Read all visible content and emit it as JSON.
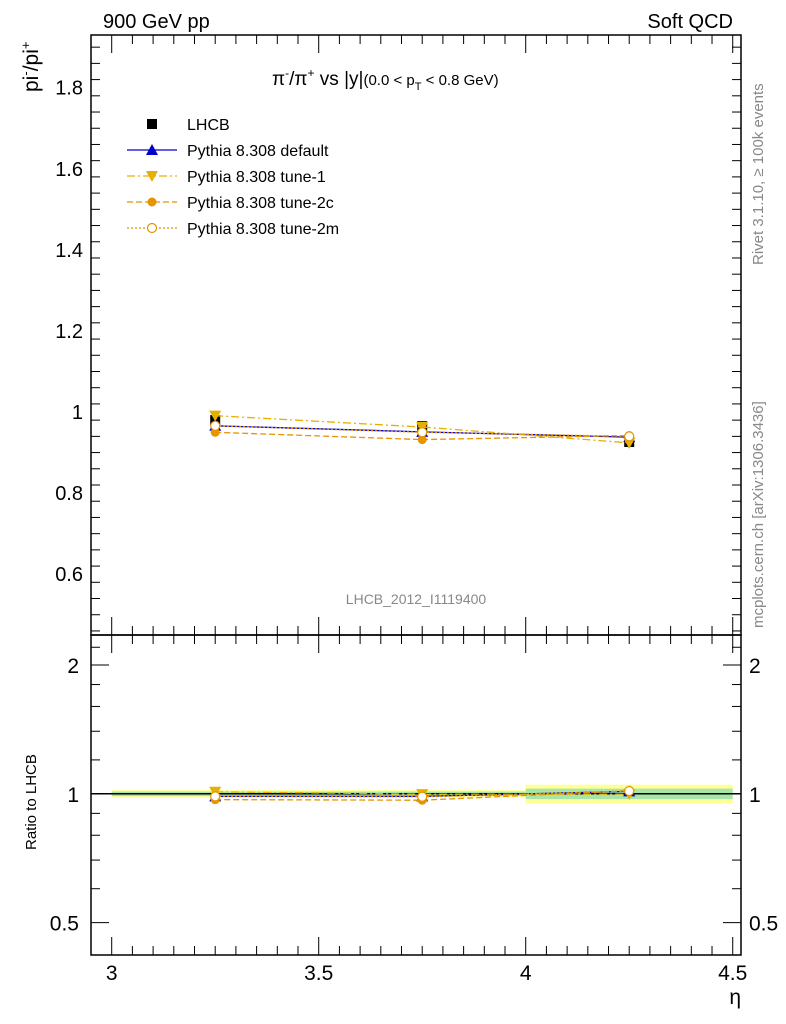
{
  "header": {
    "left_label": "900 GeV pp",
    "right_label": "Soft QCD"
  },
  "side_labels": {
    "rivet": "Rivet 3.1.10, ≥ 100k events",
    "mcplots": "mcplots.cern.ch [arXiv:1306.3436]"
  },
  "chart_data": [
    {
      "type": "line",
      "title": "π⁻/π⁺ vs |y|",
      "title_parts": {
        "main": "π",
        "sup1": "-",
        "slash": "/π",
        "sup2": "+",
        "rest": " vs |y|",
        "cut_pre": "(0.0 < p",
        "cut_sub": "T",
        "cut_post": " < 0.8 GeV)"
      },
      "ylabel": "pi-/pi+",
      "ylabel_parts": {
        "base": "pi",
        "sup1": "-",
        "mid": "/pi",
        "sup2": "+"
      },
      "analysis_label": "LHCB_2012_I1119400",
      "xlim": [
        2.95,
        4.52
      ],
      "ylim": [
        0.45,
        1.93
      ],
      "yticks": [
        0.6,
        0.8,
        1.0,
        1.2,
        1.4,
        1.6,
        1.8
      ],
      "ytick_labels": [
        "0.6",
        "0.8",
        "1",
        "1.2",
        "1.4",
        "1.6",
        "1.8"
      ],
      "legend_position": "top-left",
      "series": [
        {
          "name": "LHCB",
          "color": "#000000",
          "marker": "square",
          "line": "none",
          "x": [
            3.25,
            3.75,
            4.25
          ],
          "y": [
            0.98,
            0.965,
            0.926
          ],
          "yerr": [
            0.012,
            0.012,
            0.012
          ]
        },
        {
          "name": "Pythia 8.308 default",
          "color": "#0000cc",
          "marker": "triangle-up",
          "line": "solid",
          "x": [
            3.25,
            3.75,
            4.25
          ],
          "y": [
            0.966,
            0.951,
            0.938
          ]
        },
        {
          "name": "Pythia 8.308 tune-1",
          "color": "#e6b000",
          "marker": "triangle-down",
          "line": "dashdot",
          "x": [
            3.25,
            3.75,
            4.25
          ],
          "y": [
            0.991,
            0.963,
            0.924
          ]
        },
        {
          "name": "Pythia 8.308 tune-2c",
          "color": "#e69500",
          "marker": "circle",
          "line": "dashed",
          "x": [
            3.25,
            3.75,
            4.25
          ],
          "y": [
            0.95,
            0.932,
            0.942
          ]
        },
        {
          "name": "Pythia 8.308 tune-2m",
          "color": "#e69500",
          "marker": "open-circle",
          "line": "dotted",
          "x": [
            3.25,
            3.75,
            4.25
          ],
          "y": [
            0.966,
            0.95,
            0.94
          ]
        }
      ]
    },
    {
      "type": "line",
      "ylabel": "Ratio to LHCB",
      "xlabel": "η",
      "xlim": [
        2.95,
        4.52
      ],
      "ylim": [
        0.42,
        2.35
      ],
      "log_y": true,
      "yticks": [
        0.5,
        1,
        2
      ],
      "ytick_labels": [
        "0.5",
        "1",
        "2"
      ],
      "xticks": [
        3,
        3.5,
        4,
        4.5
      ],
      "xtick_labels": [
        "3",
        "3.5",
        "4",
        "4.5"
      ],
      "reference_band": {
        "x": [
          [
            3.0,
            3.5
          ],
          [
            3.5,
            4.0
          ],
          [
            4.0,
            4.5
          ]
        ],
        "inner": [
          0.012,
          0.012,
          0.028
        ],
        "outer": [
          0.02,
          0.02,
          0.05
        ]
      },
      "series": [
        {
          "name": "Pythia 8.308 default",
          "x": [
            3.25,
            3.75,
            4.25
          ],
          "y": [
            0.986,
            0.986,
            1.013
          ]
        },
        {
          "name": "Pythia 8.308 tune-1",
          "x": [
            3.25,
            3.75,
            4.25
          ],
          "y": [
            1.011,
            0.998,
            0.998
          ]
        },
        {
          "name": "Pythia 8.308 tune-2c",
          "x": [
            3.25,
            3.75,
            4.25
          ],
          "y": [
            0.969,
            0.966,
            1.017
          ]
        },
        {
          "name": "Pythia 8.308 tune-2m",
          "x": [
            3.25,
            3.75,
            4.25
          ],
          "y": [
            0.986,
            0.984,
            1.015
          ]
        }
      ]
    }
  ]
}
